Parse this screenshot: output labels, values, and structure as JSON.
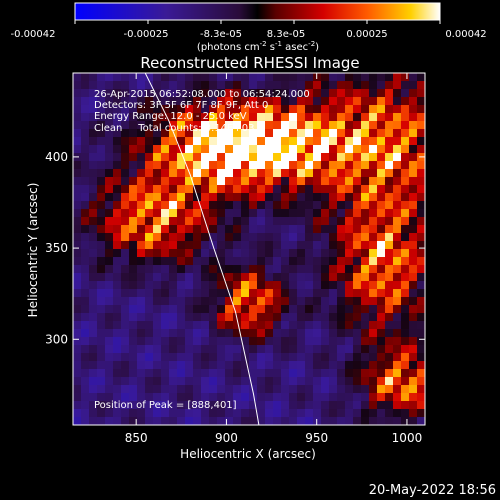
{
  "chart_data": {
    "type": "heatmap",
    "title": "Reconstructed RHESSI Image",
    "xlabel": "Heliocentric X (arcsec)",
    "ylabel": "Heliocentric Y (arcsec)",
    "xlim": [
      815,
      1010
    ],
    "ylim": [
      253,
      446
    ],
    "x_ticks": [
      850,
      900,
      950,
      1000
    ],
    "y_ticks": [
      300,
      350,
      400
    ],
    "colorbar": {
      "ticks": [
        "-0.00042",
        "-0.00025",
        "-8.3e-05",
        "8.3e-05",
        "0.00025",
        "0.00042"
      ],
      "unit_main": "(photons cm",
      "unit_exp1": "-2",
      "unit_mid1": " s",
      "unit_exp2": "-1",
      "unit_mid2": " asec",
      "unit_exp3": "-2",
      "unit_end": ")"
    },
    "annotations": [
      "26-Apr-2015 06:52:08.000 to 06:54:24.000",
      "Detectors: 3F 5F 6F 7F 8F 9F, Att 0",
      "Energy Range: 12.0 - 25.0 keV",
      "Clean     Total counts: 3.14E+03"
    ],
    "peak_label": "Position of Peak = [888,401]",
    "peak_position": [
      888,
      401
    ],
    "limb_points": [
      [
        855,
        446
      ],
      [
        868,
        420
      ],
      [
        880,
        390
      ],
      [
        893,
        350
      ],
      [
        905,
        315
      ],
      [
        915,
        270
      ],
      [
        918,
        253
      ]
    ]
  },
  "footer": {
    "date": "20-May-2022 18:56"
  }
}
